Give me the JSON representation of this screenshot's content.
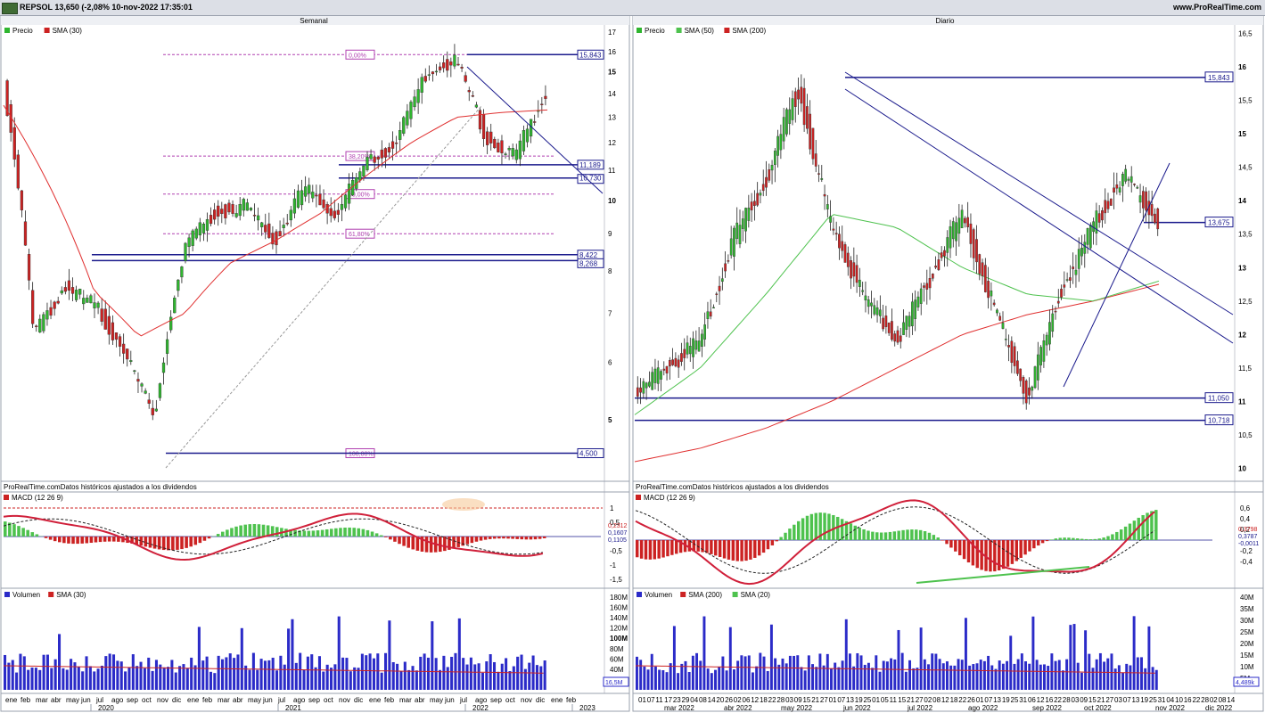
{
  "header": {
    "title": "REPSOL 13,650 (-2,08% 10-nov-2022 17:35:01",
    "site": "www.ProRealTime.com"
  },
  "colors": {
    "up": "#2fb52f",
    "down": "#cc2222",
    "sma_red": "#e03030",
    "sma_green": "#4ec24e",
    "line_blue": "#1a1a8c",
    "fib": "#b040b0",
    "macd_line": "#d0203a",
    "volume": "#2b2bc8"
  },
  "weekly": {
    "panel_title": "Semanal",
    "legend": [
      "Precio",
      "SMA (30)"
    ],
    "y_ticks": [
      "17",
      "16",
      "15",
      "14",
      "13",
      "12",
      "11",
      "10",
      "9",
      "8",
      "7",
      "6",
      "5"
    ],
    "hline_labels": [
      "15,843",
      "11,189",
      "10,730",
      "8,422",
      "8,268",
      "4,500"
    ],
    "fib_labels": [
      "0,00%",
      "38,20%",
      "50,00%",
      "61,80%",
      "100,00%"
    ],
    "footer_note": "ProRealTime.comDatos históricos ajustados a los dividendos",
    "macd_label": "MACD (12 26 9)",
    "macd_ticks": [
      "1",
      "0,5",
      "-0,5",
      "-1",
      "-1,5"
    ],
    "macd_values": [
      "0,2312",
      "0,1607",
      "0,1105"
    ],
    "volume_legend": [
      "Volumen",
      "SMA (30)"
    ],
    "volume_ticks": [
      "180M",
      "160M",
      "140M",
      "120M",
      "100M",
      "80M",
      "60M",
      "40M",
      "20M"
    ],
    "volume_last": "16,5M",
    "x_months": [
      "ene",
      "feb",
      "mar",
      "abr",
      "may",
      "jun",
      "jul",
      "ago",
      "sep",
      "oct",
      "nov",
      "dic",
      "ene",
      "feb",
      "mar",
      "abr",
      "may",
      "jun",
      "jul",
      "ago",
      "sep",
      "oct",
      "nov",
      "dic",
      "ene",
      "feb",
      "mar",
      "abr",
      "may",
      "jun",
      "jul",
      "ago",
      "sep",
      "oct",
      "nov",
      "dic",
      "ene",
      "feb"
    ],
    "x_years": [
      "2020",
      "2021",
      "2022",
      "2023"
    ]
  },
  "daily": {
    "panel_title": "Diario",
    "legend": [
      "Precio",
      "SMA (50)",
      "SMA (200)"
    ],
    "y_ticks": [
      "16,5",
      "16",
      "15,5",
      "15",
      "14,5",
      "14",
      "13,5",
      "13",
      "12,5",
      "12",
      "11,5",
      "11",
      "10,5",
      "10"
    ],
    "hline_labels": [
      "15,843",
      "13,675",
      "11,050",
      "10,718"
    ],
    "footer_note": "ProRealTime.comDatos históricos ajustados a los dividendos",
    "macd_label": "MACD (12 26 9)",
    "macd_ticks": [
      "0,6",
      "0,4",
      "0,2",
      "-0,2",
      "-0,4"
    ],
    "macd_values": [
      "0,3798",
      "0,3787",
      "-0,0011"
    ],
    "volume_legend": [
      "Volumen",
      "SMA (200)",
      "SMA (20)"
    ],
    "volume_ticks": [
      "40M",
      "35M",
      "30M",
      "25M",
      "20M",
      "15M",
      "10M",
      "5M"
    ],
    "volume_last": "4,489k",
    "x_days": [
      "01",
      "07",
      "11",
      "17",
      "23",
      "29",
      "04",
      "08",
      "14",
      "20",
      "26",
      "02",
      "06",
      "12",
      "18",
      "22",
      "28",
      "03",
      "09",
      "15",
      "21",
      "27",
      "01",
      "07",
      "13",
      "19",
      "25",
      "01",
      "05",
      "11",
      "15",
      "21",
      "27",
      "02",
      "08",
      "12",
      "18",
      "22",
      "26",
      "01",
      "07",
      "13",
      "19",
      "25",
      "31",
      "06",
      "12",
      "16",
      "22",
      "28",
      "03",
      "09",
      "15",
      "21",
      "27",
      "03",
      "07",
      "13",
      "19",
      "25",
      "31",
      "04",
      "10",
      "16",
      "22",
      "28",
      "02",
      "08",
      "14"
    ],
    "x_months": [
      "mar 2022",
      "abr 2022",
      "may 2022",
      "jun 2022",
      "jul 2022",
      "ago 2022",
      "sep 2022",
      "oct 2022",
      "nov 2022",
      "dic 2022"
    ]
  },
  "chart_data": [
    {
      "type": "line",
      "title": "Semanal",
      "series": [
        {
          "name": "Precio",
          "x": [
            "2020-01",
            "2020-03",
            "2020-05",
            "2020-07",
            "2020-09",
            "2020-11",
            "2021-01",
            "2021-03",
            "2021-05",
            "2021-07",
            "2021-09",
            "2021-11",
            "2022-01",
            "2022-03",
            "2022-05",
            "2022-06",
            "2022-08",
            "2022-10",
            "2022-11"
          ],
          "values": [
            14.3,
            6.5,
            7.6,
            7.2,
            6.2,
            5.0,
            8.6,
            9.6,
            9.8,
            8.8,
            10.4,
            9.5,
            11.2,
            12.0,
            14.8,
            15.6,
            12.2,
            11.5,
            14.0
          ]
        },
        {
          "name": "SMA (30)",
          "x": [
            "2020-01",
            "2020-04",
            "2020-07",
            "2020-10",
            "2021-01",
            "2021-04",
            "2021-07",
            "2021-10",
            "2022-01",
            "2022-04",
            "2022-07",
            "2022-10",
            "2022-11"
          ],
          "values": [
            13.5,
            10.5,
            7.5,
            6.5,
            7.0,
            8.2,
            8.8,
            9.6,
            10.8,
            12.0,
            13.0,
            13.2,
            13.3
          ]
        }
      ],
      "ylim": [
        4.2,
        17.3
      ],
      "yscale": "log",
      "hlines": [
        15.843,
        11.189,
        10.73,
        8.422,
        8.268,
        4.5
      ]
    },
    {
      "type": "line",
      "title": "Diario",
      "series": [
        {
          "name": "Precio",
          "x": [
            "2022-03-01",
            "2022-03-10",
            "2022-04-01",
            "2022-04-20",
            "2022-05-10",
            "2022-06-08",
            "2022-06-20",
            "2022-07-05",
            "2022-07-20",
            "2022-08-10",
            "2022-08-30",
            "2022-09-15",
            "2022-09-27",
            "2022-10-10",
            "2022-10-25",
            "2022-11-04",
            "2022-11-10"
          ],
          "values": [
            11.1,
            11.5,
            11.9,
            13.4,
            14.3,
            15.7,
            13.6,
            12.6,
            11.9,
            12.8,
            13.8,
            12.4,
            11.05,
            12.6,
            13.6,
            14.4,
            13.65
          ]
        },
        {
          "name": "SMA (50)",
          "x": [
            "2022-03-01",
            "2022-04-15",
            "2022-05-15",
            "2022-06-15",
            "2022-07-15",
            "2022-08-15",
            "2022-09-15",
            "2022-10-15",
            "2022-11-10"
          ],
          "values": [
            10.8,
            11.5,
            12.6,
            13.8,
            13.6,
            13.0,
            12.6,
            12.5,
            12.8
          ]
        },
        {
          "name": "SMA (200)",
          "x": [
            "2022-03-01",
            "2022-04-15",
            "2022-05-15",
            "2022-06-15",
            "2022-07-15",
            "2022-08-15",
            "2022-09-15",
            "2022-10-15",
            "2022-11-10"
          ],
          "values": [
            10.1,
            10.3,
            10.6,
            11.0,
            11.5,
            12.0,
            12.3,
            12.5,
            12.75
          ]
        }
      ],
      "ylim": [
        9.9,
        16.6
      ],
      "hlines": [
        15.843,
        13.675,
        11.05,
        10.718
      ]
    }
  ]
}
